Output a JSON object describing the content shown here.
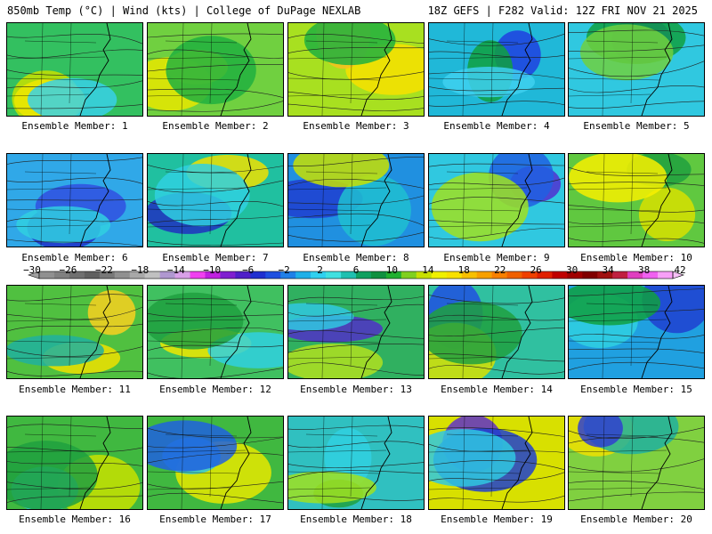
{
  "header": {
    "left_title": "850mb Temp (°C) | Wind (kts) | College of DuPage NEXLAB",
    "right_title": "18Z GEFS | F282 Valid: 12Z FRI NOV 21 2025"
  },
  "panels": [
    {
      "label": "Ensemble Member: 1",
      "fill": "#33c060",
      "accents": [
        "#c8e000",
        "#f0e800",
        "#38d0e8"
      ]
    },
    {
      "label": "Ensemble Member: 2",
      "fill": "#70d040",
      "accents": [
        "#e8e800",
        "#f8f000",
        "#20b040"
      ]
    },
    {
      "label": "Ensemble Member: 3",
      "fill": "#a8e020",
      "accents": [
        "#f8e000",
        "#f8c020",
        "#20b040"
      ]
    },
    {
      "label": "Ensemble Member: 4",
      "fill": "#20b8d8",
      "accents": [
        "#2040e0",
        "#10a040",
        "#40d0f0"
      ]
    },
    {
      "label": "Ensemble Member: 5",
      "fill": "#30c8e0",
      "accents": [
        "#3030d0",
        "#10a040",
        "#70d040"
      ]
    },
    {
      "label": "Ensemble Member: 6",
      "fill": "#30a8e8",
      "accents": [
        "#2030c8",
        "#3050e0",
        "#30d0e0"
      ]
    },
    {
      "label": "Ensemble Member: 7",
      "fill": "#20c0a0",
      "accents": [
        "#2030c0",
        "#f0e000",
        "#30d0e0"
      ]
    },
    {
      "label": "Ensemble Member: 8",
      "fill": "#2090e0",
      "accents": [
        "#2040d0",
        "#20c0d0",
        "#c8e000"
      ]
    },
    {
      "label": "Ensemble Member: 9",
      "fill": "#30c8e0",
      "accents": [
        "#5030d0",
        "#2060e0",
        "#a0e020"
      ]
    },
    {
      "label": "Ensemble Member: 10",
      "fill": "#60c840",
      "accents": [
        "#20a040",
        "#d8e000",
        "#f8f000"
      ]
    },
    {
      "label": "Ensemble Member: 11",
      "fill": "#50c040",
      "accents": [
        "#f0e000",
        "#f8d020",
        "#20b0a0"
      ]
    },
    {
      "label": "Ensemble Member: 12",
      "fill": "#40c060",
      "accents": [
        "#f0e800",
        "#30d0e0",
        "#20a040"
      ]
    },
    {
      "label": "Ensemble Member: 13",
      "fill": "#30b060",
      "accents": [
        "#5030c8",
        "#30c8e0",
        "#b0e020"
      ]
    },
    {
      "label": "Ensemble Member: 14",
      "fill": "#30c0a0",
      "accents": [
        "#2050e0",
        "#d8e000",
        "#20a040"
      ]
    },
    {
      "label": "Ensemble Member: 15",
      "fill": "#20a0e0",
      "accents": [
        "#2040d0",
        "#30d0e0",
        "#10a040"
      ]
    },
    {
      "label": "Ensemble Member: 16",
      "fill": "#40b840",
      "accents": [
        "#c8e000",
        "#30c8e0",
        "#20a040"
      ]
    },
    {
      "label": "Ensemble Member: 17",
      "fill": "#40b840",
      "accents": [
        "#e8e800",
        "#30c8e0",
        "#2060e0"
      ]
    },
    {
      "label": "Ensemble Member: 18",
      "fill": "#30c0c0",
      "accents": [
        "#30d0e0",
        "#20a040",
        "#a0e020"
      ]
    },
    {
      "label": "Ensemble Member: 19",
      "fill": "#d8e000",
      "accents": [
        "#6030c8",
        "#2040d0",
        "#30c8e0"
      ]
    },
    {
      "label": "Ensemble Member: 20",
      "fill": "#80d040",
      "accents": [
        "#f0e000",
        "#20b0a0",
        "#3040d0"
      ]
    }
  ],
  "colorbar": {
    "labels": [
      "-30",
      "-26",
      "-22",
      "-18",
      "-14",
      "-10",
      "-6",
      "-2",
      "2",
      "6",
      "10",
      "14",
      "18",
      "22",
      "26",
      "30",
      "34",
      "38",
      "42"
    ],
    "colors": [
      "#909090",
      "#808080",
      "#707070",
      "#606060",
      "#787878",
      "#909090",
      "#a8a8a8",
      "#c0c0c0",
      "#b098d0",
      "#d8a0e8",
      "#f040f0",
      "#c020e0",
      "#8020d0",
      "#5020c8",
      "#2030d0",
      "#2050e0",
      "#2080e8",
      "#20b0e8",
      "#30d0f0",
      "#40e0e0",
      "#20c0b0",
      "#10a060",
      "#109040",
      "#20b030",
      "#80d020",
      "#c8e000",
      "#f0f000",
      "#f8e000",
      "#f8c000",
      "#f8a000",
      "#f88000",
      "#f06000",
      "#f04000",
      "#e02000",
      "#c00000",
      "#a00000",
      "#800000",
      "#a01010",
      "#c02040",
      "#e040c0",
      "#f060f0",
      "#f8a0f8"
    ]
  }
}
